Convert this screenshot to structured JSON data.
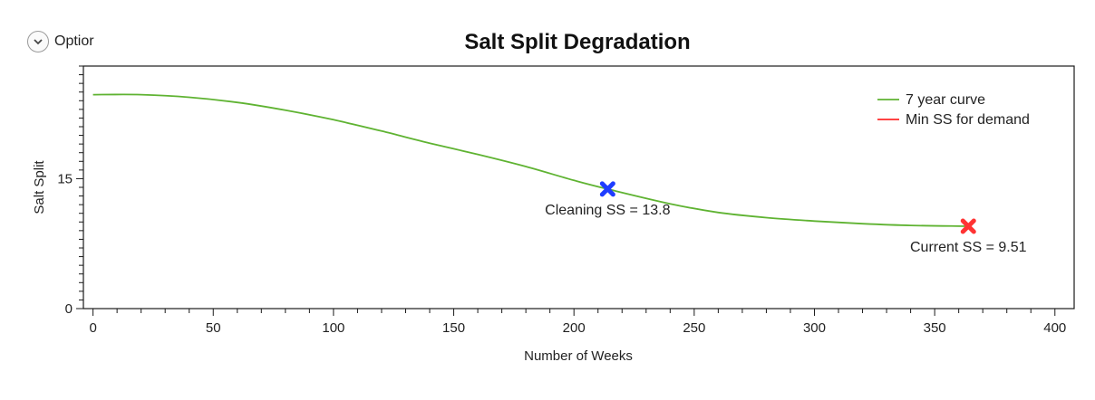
{
  "options": {
    "label": "Optior",
    "icon": "chevron-down-icon"
  },
  "chart_data": {
    "type": "line",
    "title": "Salt Split Degradation",
    "xlabel": "Number of Weeks",
    "ylabel": "Salt Split",
    "xlim": [
      -4,
      408
    ],
    "ylim": [
      0,
      28
    ],
    "x_ticks": [
      0,
      50,
      100,
      150,
      200,
      250,
      300,
      350,
      400
    ],
    "y_ticks": [
      0,
      15
    ],
    "legend_position": "top-right",
    "series": [
      {
        "name": "7 year curve",
        "color": "#5fb332",
        "x": [
          0,
          20,
          40,
          60,
          80,
          100,
          120,
          140,
          160,
          180,
          200,
          214,
          240,
          260,
          280,
          300,
          320,
          340,
          364
        ],
        "y": [
          24.7,
          24.7,
          24.4,
          23.8,
          22.9,
          21.8,
          20.5,
          19.1,
          17.8,
          16.4,
          14.8,
          13.8,
          12.1,
          11.1,
          10.5,
          10.1,
          9.8,
          9.6,
          9.51
        ]
      },
      {
        "name": "Min SS for demand",
        "color": "#ff2a2a",
        "x": [],
        "y": []
      }
    ],
    "markers": [
      {
        "x": 214,
        "y": 13.8,
        "color": "#1f3dff",
        "label": "Cleaning SS = 13.8"
      },
      {
        "x": 364,
        "y": 9.51,
        "color": "#ff3333",
        "label": "Current SS = 9.51"
      }
    ]
  }
}
